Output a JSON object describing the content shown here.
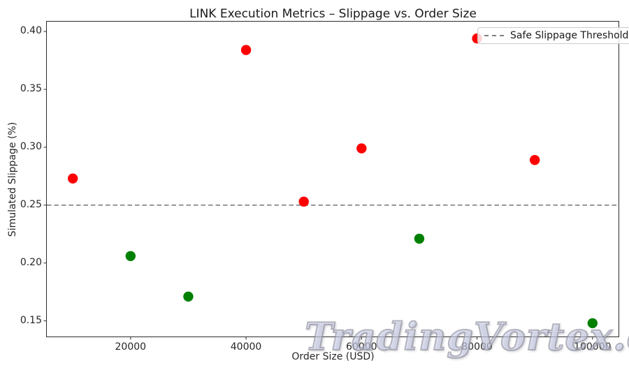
{
  "figure": {
    "title": "LINK Execution Metrics – Slippage vs. Order Size",
    "xlabel": "Order Size (USD)",
    "ylabel": "Simulated Slippage (%)",
    "watermark": "TradingVortex.com"
  },
  "legend": {
    "items": [
      {
        "label": "Safe Slippage Threshold",
        "style": "dashed",
        "color": "#808080"
      }
    ]
  },
  "chart_data": {
    "type": "scatter",
    "title": "LINK Execution Metrics – Slippage vs. Order Size",
    "xlabel": "Order Size (USD)",
    "ylabel": "Simulated Slippage (%)",
    "xlim": [
      5500,
      104500
    ],
    "ylim": [
      0.1365,
      0.4085
    ],
    "x_ticks": [
      "20000",
      "40000",
      "60000",
      "80000",
      "100000"
    ],
    "y_ticks": [
      "0.15",
      "0.20",
      "0.25",
      "0.30",
      "0.35",
      "0.40"
    ],
    "grid": false,
    "legend_position": "upper right",
    "threshold_line": {
      "y": 0.25,
      "label": "Safe Slippage Threshold",
      "color": "#808080",
      "style": "dashed"
    },
    "point_colors": {
      "above_threshold": "#ff0000",
      "below_threshold": "#008000"
    },
    "marker_radius": 7.2,
    "points": [
      {
        "x": 10000,
        "y": 0.273,
        "color": "#ff0000"
      },
      {
        "x": 20000,
        "y": 0.206,
        "color": "#008000"
      },
      {
        "x": 30000,
        "y": 0.171,
        "color": "#008000"
      },
      {
        "x": 40000,
        "y": 0.384,
        "color": "#ff0000"
      },
      {
        "x": 50000,
        "y": 0.253,
        "color": "#ff0000"
      },
      {
        "x": 60000,
        "y": 0.299,
        "color": "#ff0000"
      },
      {
        "x": 70000,
        "y": 0.221,
        "color": "#008000"
      },
      {
        "x": 80000,
        "y": 0.394,
        "color": "#ff0000"
      },
      {
        "x": 90000,
        "y": 0.289,
        "color": "#ff0000"
      },
      {
        "x": 100000,
        "y": 0.148,
        "color": "#008000"
      }
    ]
  }
}
